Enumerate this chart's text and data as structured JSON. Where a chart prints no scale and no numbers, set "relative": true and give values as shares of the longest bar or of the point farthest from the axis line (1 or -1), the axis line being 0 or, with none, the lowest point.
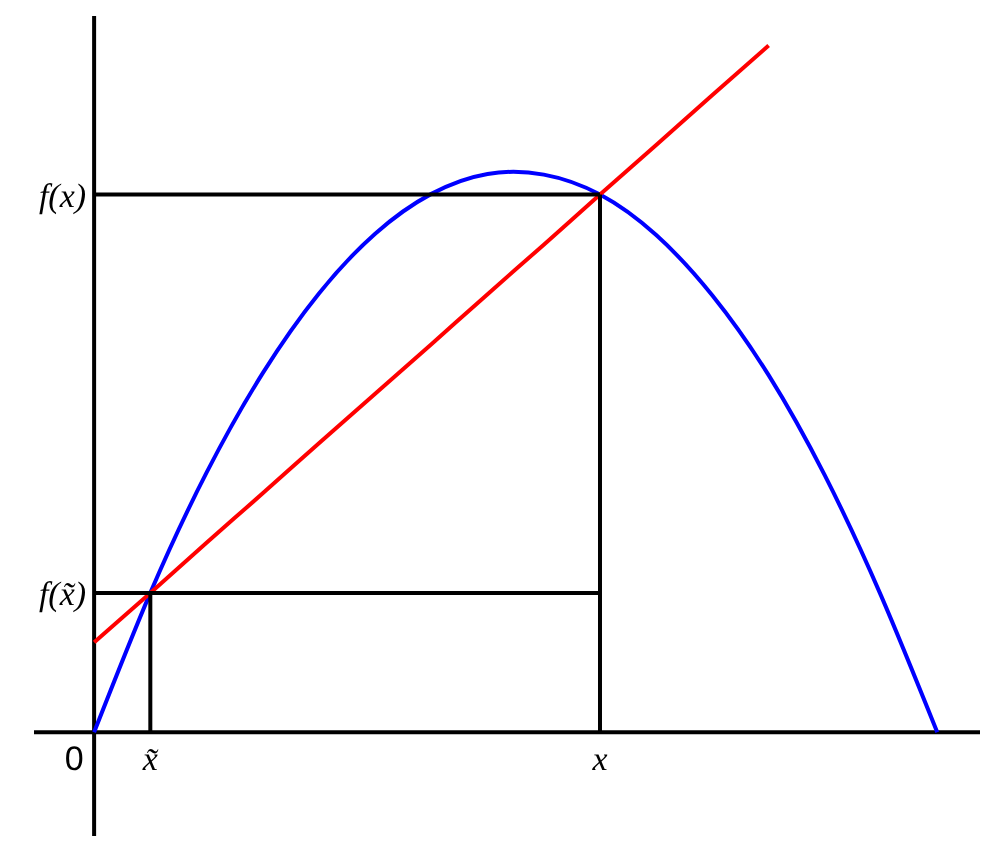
{
  "chart_data": {
    "type": "line",
    "relative": true,
    "categories": [
      null,
      "x̃",
      null,
      null,
      null,
      null,
      null,
      null,
      null,
      "x",
      null,
      null,
      null,
      null,
      null,
      null
    ],
    "series": [
      {
        "color": "#0000ff",
        "values": [
          0,
          0.203,
          0.378,
          0.523,
          0.639,
          0.726,
          0.784,
          0.813,
          0.812,
          0.783,
          0.724,
          0.636,
          0.52,
          0.374,
          0.199,
          0
        ]
      },
      {
        "color": "#ff0000",
        "values": [
          0.131,
          0.203,
          0.276,
          0.348,
          0.421,
          0.493,
          0.565,
          0.638,
          0.71,
          0.783,
          0.855,
          0.928,
          1,
          null,
          null,
          null
        ]
      },
      {
        "color": "#000000",
        "values": [
          0.783,
          0.783,
          0.783,
          0.783,
          0.783,
          0.783,
          0.783,
          0.783,
          0.783,
          0.783,
          null,
          null,
          null,
          null,
          null,
          null
        ]
      },
      {
        "color": "#000000",
        "values": [
          0.203,
          0.203,
          0.203,
          0.203,
          0.203,
          0.203,
          0.203,
          0.203,
          0.203,
          0.203,
          null,
          null,
          null,
          null,
          null,
          null
        ]
      },
      {
        "color": "#000000",
        "x": [
          "x",
          "x"
        ],
        "values": [
          0.783,
          0
        ]
      },
      {
        "color": "#000000",
        "x": [
          "x̃",
          "x̃"
        ],
        "values": [
          0.203,
          0
        ]
      }
    ],
    "annotations": [
      "0",
      "f(x̃)",
      "f(x)"
    ],
    "grid": false,
    "marker": "none",
    "line_style": "solid"
  }
}
